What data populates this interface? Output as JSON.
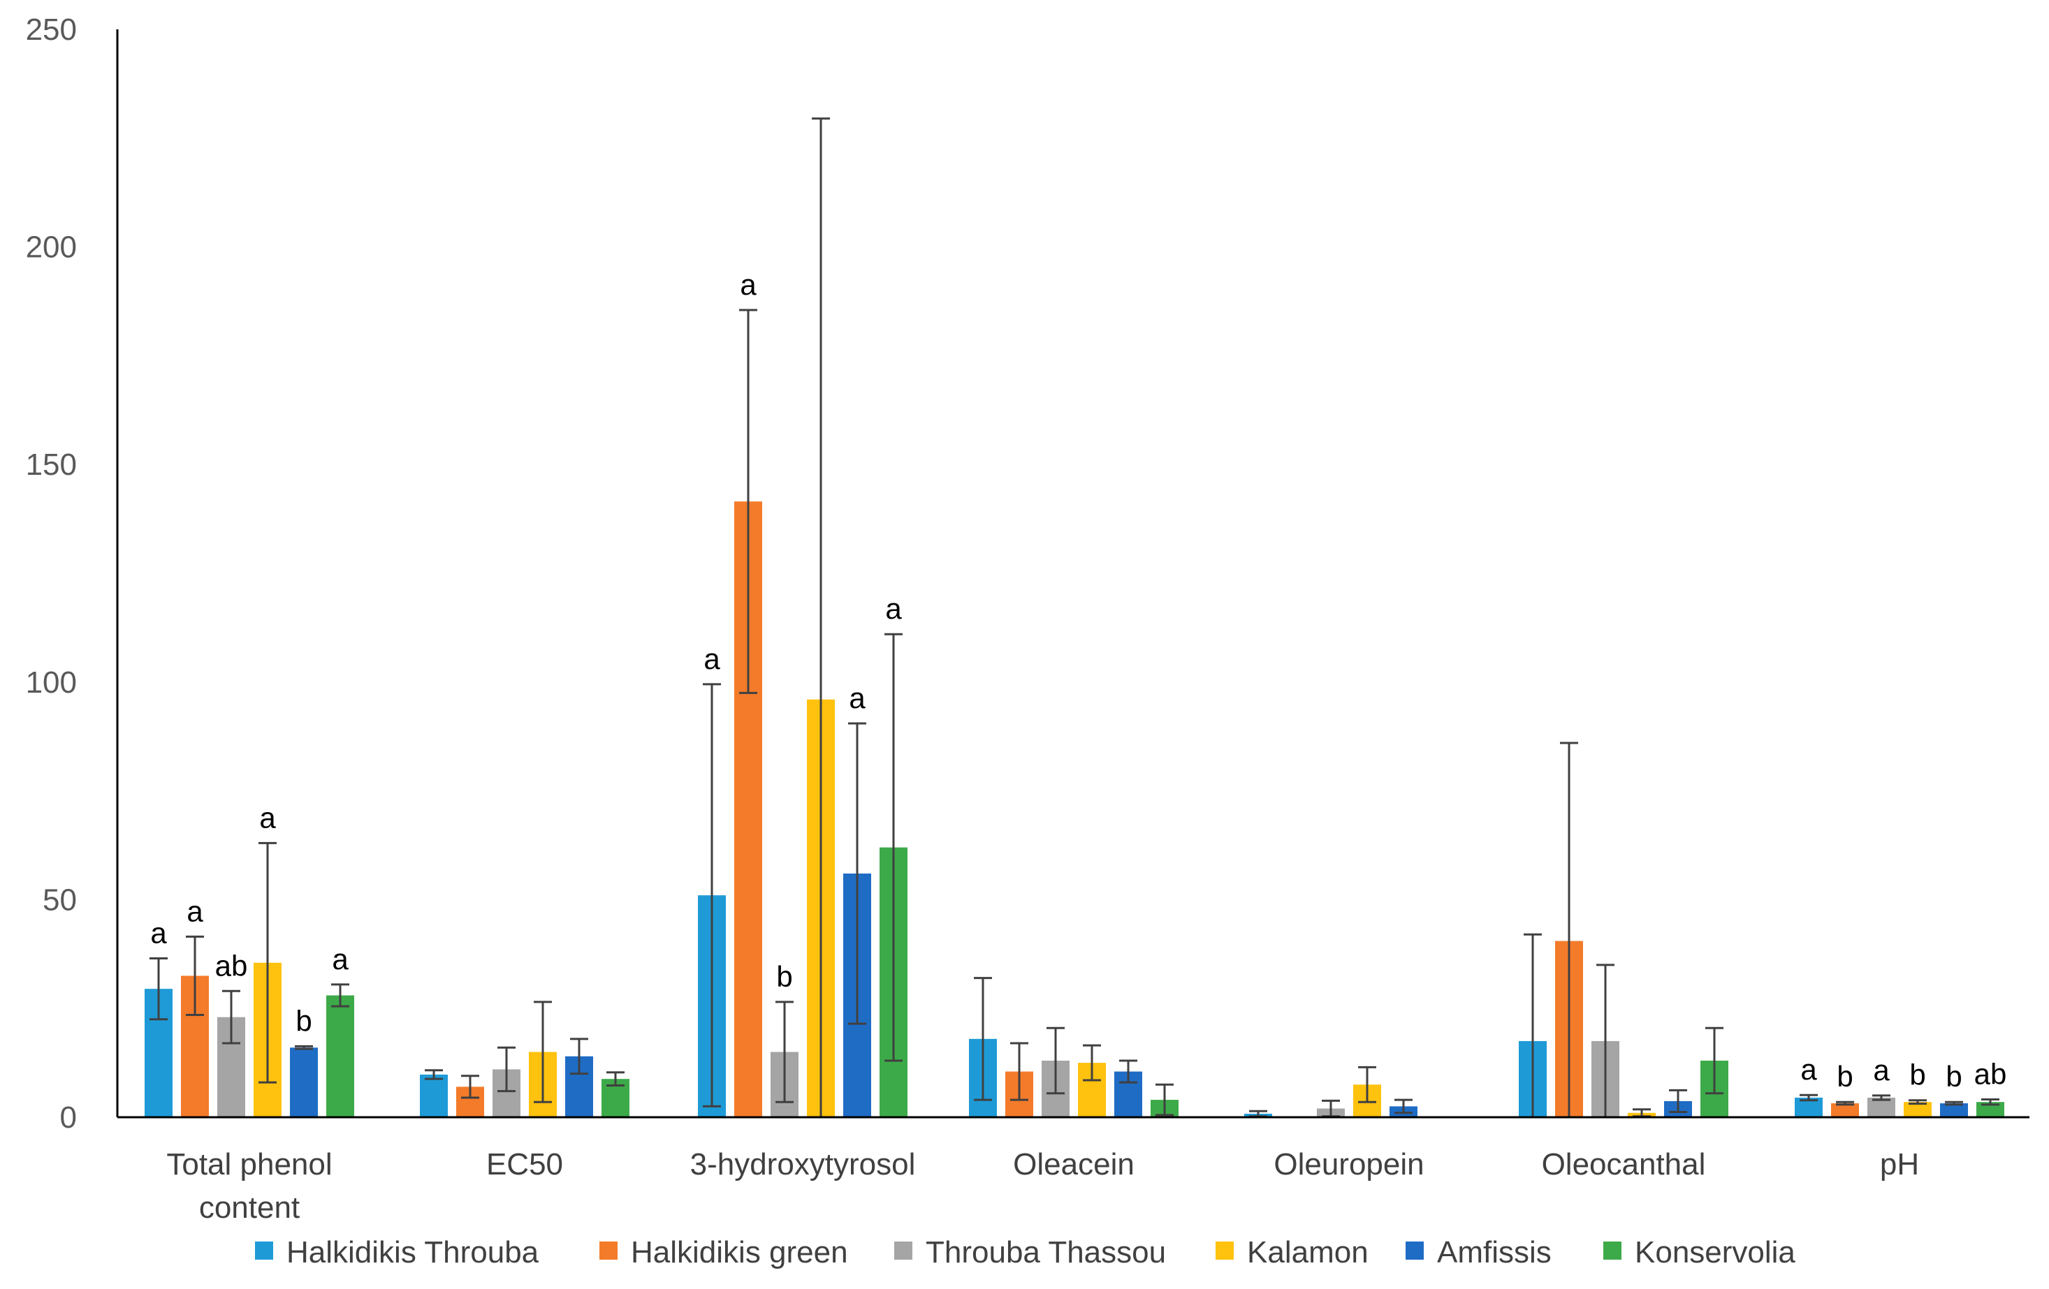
{
  "chart_data": {
    "type": "bar",
    "title": "",
    "xlabel": "",
    "ylabel": "",
    "ylim": [
      0,
      250
    ],
    "yticks": [
      0,
      50,
      100,
      150,
      200,
      250
    ],
    "grid": false,
    "legend_position": "bottom",
    "categories": [
      [
        "Total phenol",
        "content"
      ],
      [
        "EC50"
      ],
      [
        "3-hydroxytyrosol"
      ],
      [
        "Oleacein"
      ],
      [
        "Oleuropein"
      ],
      [
        "Oleocanthal"
      ],
      [
        "pH"
      ]
    ],
    "series": [
      {
        "name": "Halkidikis Throuba",
        "color": "#1E9BD7",
        "values": [
          29.5,
          9.8,
          51,
          18,
          0.8,
          17.5,
          4.5
        ],
        "errors": [
          7,
          1,
          48.5,
          14,
          0.6,
          24.5,
          0.6
        ],
        "letters": [
          "a",
          "",
          "a",
          "",
          "",
          "",
          "a"
        ]
      },
      {
        "name": "Halkidikis green",
        "color": "#F47B2A",
        "values": [
          32.5,
          7,
          141.5,
          10.5,
          0.1,
          40.5,
          3.2
        ],
        "errors": [
          9,
          2.5,
          44,
          6.5,
          0,
          45.5,
          0.3
        ],
        "letters": [
          "a",
          "",
          "a",
          "",
          "",
          "",
          "b"
        ]
      },
      {
        "name": "Throuba Thassou",
        "color": "#A5A5A5",
        "values": [
          23,
          11,
          15,
          13,
          2,
          17.5,
          4.5
        ],
        "errors": [
          6,
          5,
          11.5,
          7.5,
          1.8,
          17.5,
          0.5
        ],
        "letters": [
          "ab",
          "",
          "b",
          "",
          "",
          "",
          "a"
        ]
      },
      {
        "name": "Kalamon",
        "color": "#FFC20E",
        "values": [
          35.5,
          15,
          96,
          12.5,
          7.5,
          1,
          3.5
        ],
        "errors": [
          27.5,
          11.5,
          133.5,
          4,
          4,
          0.8,
          0.4
        ],
        "letters": [
          "a",
          "",
          "",
          "",
          "",
          "",
          "b"
        ]
      },
      {
        "name": "Amfissis",
        "color": "#1F6CC5",
        "values": [
          16,
          14,
          56,
          10.5,
          2.5,
          3.7,
          3.2
        ],
        "errors": [
          0.3,
          4,
          34.5,
          2.5,
          1.5,
          2.5,
          0.3
        ],
        "letters": [
          "b",
          "",
          "a",
          "",
          "",
          "",
          "b"
        ]
      },
      {
        "name": "Konservolia",
        "color": "#3DAA49",
        "values": [
          28,
          8.8,
          62,
          4,
          0.1,
          13,
          3.5
        ],
        "errors": [
          2.5,
          1.5,
          49,
          3.5,
          0,
          7.5,
          0.6
        ],
        "letters": [
          "a",
          "",
          "a",
          "",
          "",
          "",
          "ab"
        ]
      }
    ]
  }
}
